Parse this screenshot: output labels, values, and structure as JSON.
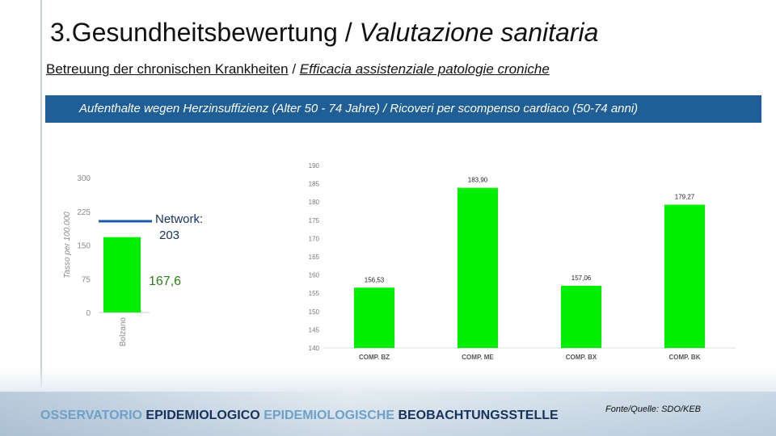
{
  "header": {
    "title_de": "3.Gesundheitsbewertung",
    "title_sep": " / ",
    "title_it": "Valutazione sanitaria",
    "subtitle_de": "Betreuung der chronischen Krankheiten",
    "subtitle_sep": " / ",
    "subtitle_it": "Efficacia assistenziale patologie croniche"
  },
  "banner": {
    "text": "Aufenthalte wegen Herzinsuffizienz (Alter 50 - 74 Jahre) / Ricoveri per scompenso cardiaco  (50-74 anni)"
  },
  "annotations": {
    "network_label": "Network:",
    "network_value": "203",
    "bolzano_value": "167,6"
  },
  "chart_data": [
    {
      "type": "bar",
      "title": "",
      "ylabel": "Tasso per 100.000",
      "xlabel": "",
      "ylim": [
        0,
        300
      ],
      "yticks": [
        "0",
        "75",
        "150",
        "225",
        "300"
      ],
      "categories": [
        "Bolzano"
      ],
      "values": [
        167.6
      ],
      "reference_line": {
        "label": "Network:",
        "value": 203
      },
      "colors": {
        "bar": "#00ee00",
        "reference": "#1e5aa8",
        "axis_text": "#8a8a8a"
      }
    },
    {
      "type": "bar",
      "title": "",
      "xlabel": "",
      "ylabel": "",
      "ylim": [
        140,
        190
      ],
      "yticks": [
        "140",
        "145",
        "150",
        "155",
        "160",
        "165",
        "170",
        "175",
        "180",
        "185",
        "190"
      ],
      "categories": [
        "COMP. BZ",
        "COMP. ME",
        "COMP. BX",
        "COMP. BK"
      ],
      "values": [
        156.53,
        183.9,
        157.06,
        179.27
      ],
      "data_labels": [
        "156,53",
        "183,90",
        "157,06",
        "179,27"
      ],
      "colors": {
        "bar": "#00ee00",
        "axis_text": "#777777"
      }
    }
  ],
  "footer": {
    "part1": "OSSERVATORIO ",
    "part2": "EPIDEMIOLOGICO ",
    "part3": "EPIDEMIOLOGISCHE ",
    "part4": "BEOBACHTUNGSSTELLE",
    "source": "Fonte/Quelle: SDO/KEB",
    "colors": {
      "light": "#6fa0c8",
      "dark": "#16325c"
    }
  }
}
